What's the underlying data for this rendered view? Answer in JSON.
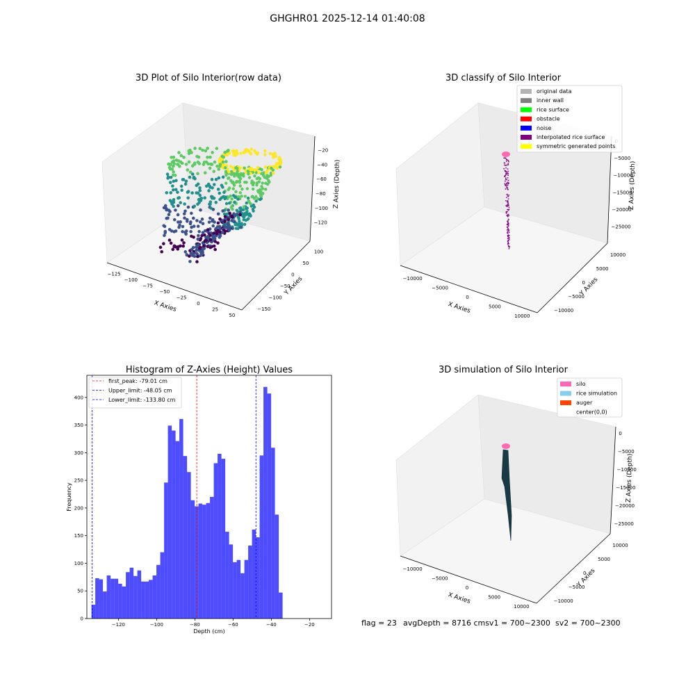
{
  "figure": {
    "suptitle": "GHGHR01 2025-12-14 01:40:08",
    "footer": {
      "flag": "flag = 23",
      "avg": "avgDepth = 8716 cmsv1 = 700~2300",
      "sv2": "sv2 = 700~2300"
    }
  },
  "chart_data": [
    {
      "type": "scatter",
      "title": "3D Plot of Silo Interior(row data)",
      "xlabel": "X Axies",
      "ylabel": "Y Axies",
      "zlabel": "Z Axies (Depth)",
      "xticks": [
        "−125",
        "−100",
        "−75",
        "−50",
        "−25",
        "0",
        "25",
        "50"
      ],
      "yticks": [
        "−150",
        "−100",
        "−50",
        "0",
        "50",
        "100"
      ],
      "zticks": [
        "−20",
        "−40",
        "−60",
        "−80",
        "−100",
        "−120"
      ],
      "xlim": [
        -140,
        60
      ],
      "ylim": [
        -170,
        120
      ],
      "zlim": [
        -135,
        -10
      ],
      "colormap": "viridis",
      "colors": {
        "low": "#440154",
        "mid1": "#3b528b",
        "mid2": "#21908c",
        "mid3": "#5dc963",
        "high": "#fde725"
      }
    },
    {
      "type": "scatter",
      "title": "3D classify of Silo Interior",
      "xlabel": "X Axies",
      "ylabel": "Y Axies",
      "zlabel": "Z Axies (Depth)",
      "xticks": [
        "−10000",
        "−5000",
        "0",
        "5000",
        "10000"
      ],
      "yticks": [
        "−10000",
        "−5000",
        "0",
        "5000",
        "10000"
      ],
      "zticks": [
        "0",
        "−5000",
        "−10000",
        "−15000",
        "−20000",
        "−25000"
      ],
      "xlim": [
        -12000,
        12000
      ],
      "ylim": [
        -12000,
        12000
      ],
      "zlim": [
        -27000,
        0
      ],
      "legend_position": "top-right",
      "legend": [
        {
          "label": "original data",
          "color": "#b4b4b4"
        },
        {
          "label": "inner wall",
          "color": "#7f7f7f"
        },
        {
          "label": "rice surface",
          "color": "#00ff00"
        },
        {
          "label": "obstacle",
          "color": "#ff0000"
        },
        {
          "label": "noise",
          "color": "#0000ff"
        },
        {
          "label": "interpolated rice surface",
          "color": "#800080"
        },
        {
          "label": "symmetric generated points",
          "color": "#ffff00"
        }
      ]
    },
    {
      "type": "bar",
      "title": "Histogram of Z-Axies (Height) Values",
      "xlabel": "Depth (cm)",
      "ylabel": "Frequency",
      "xlim": [
        -136.5,
        -8.5
      ],
      "ylim": [
        0,
        440
      ],
      "xticks": [
        -120,
        -100,
        -80,
        -60,
        -40,
        -20
      ],
      "yticks": [
        0,
        50,
        100,
        150,
        200,
        250,
        300,
        350,
        400
      ],
      "bin_start": -134.1,
      "bin_width": 2.0,
      "values": [
        25,
        73,
        71,
        49,
        78,
        72,
        72,
        63,
        58,
        84,
        92,
        77,
        87,
        67,
        67,
        70,
        78,
        97,
        120,
        246,
        349,
        340,
        321,
        361,
        294,
        265,
        214,
        203,
        208,
        206,
        209,
        220,
        281,
        298,
        289,
        157,
        134,
        102,
        106,
        82,
        106,
        132,
        161,
        147,
        295,
        419,
        407,
        309,
        188,
        47
      ],
      "bar_color": "#4d4dff",
      "legend_position": "top-left",
      "vlines": [
        {
          "label": "first_peak: -79.01 cm",
          "x": -79.01,
          "color": "#ff0000"
        },
        {
          "label": "Upper_limit: -48.05 cm",
          "x": -48.05,
          "color": "#0000ff"
        },
        {
          "label": "Lower_limit: -133.80 cm",
          "x": -133.8,
          "color": "#0000ff"
        }
      ]
    },
    {
      "type": "scatter",
      "title": "3D simulation of Silo Interior",
      "xlabel": "X Axies",
      "ylabel": "Y Axies",
      "zlabel": "Z Axies (Depth)",
      "xticks": [
        "−10000",
        "−5000",
        "0",
        "5000",
        "10000"
      ],
      "yticks": [
        "−10000",
        "−5000",
        "0",
        "5000",
        "10000"
      ],
      "zticks": [
        "0",
        "−5000",
        "−10000",
        "−15000",
        "−20000",
        "−25000"
      ],
      "xlim": [
        -12000,
        12000
      ],
      "ylim": [
        -12000,
        12000
      ],
      "zlim": [
        -27000,
        0
      ],
      "legend_position": "top-right",
      "legend": [
        {
          "label": "silo",
          "color": "#ff69b4"
        },
        {
          "label": "rice simulation",
          "color": "#87ceeb"
        },
        {
          "label": "auger",
          "color": "#ff4500"
        },
        {
          "label": "center(0,0)",
          "color": "#ffffff"
        }
      ]
    }
  ]
}
